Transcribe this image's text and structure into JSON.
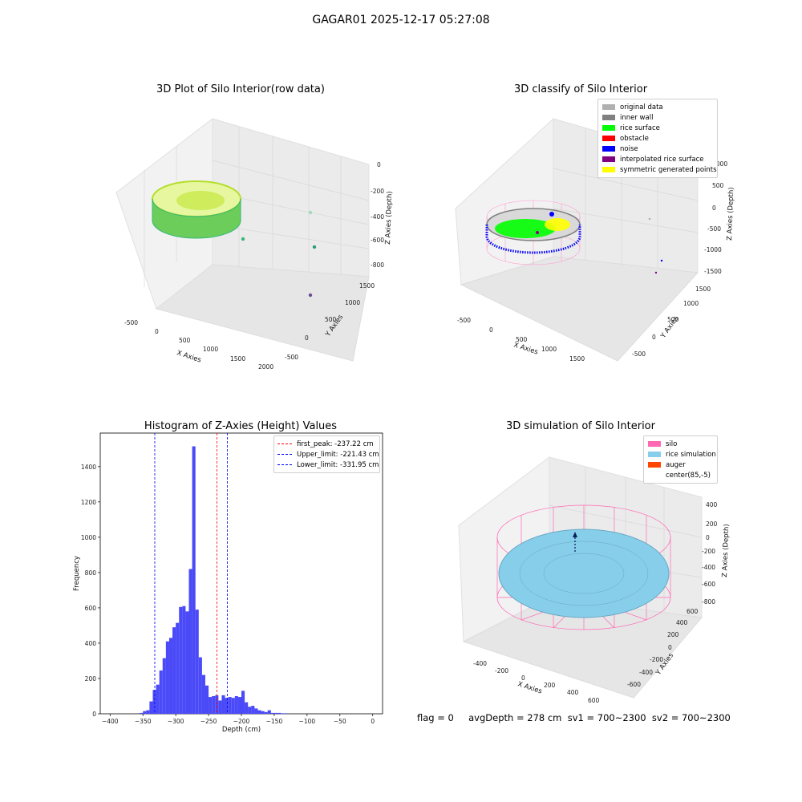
{
  "figure": {
    "title": "GAGAR01 2025-12-17 05:27:08"
  },
  "status_line": "flag = 0     avgDepth = 278 cm  sv1 = 700~2300  sv2 = 700~2300",
  "chart_data": [
    {
      "type": "scatter3d",
      "title": "3D Plot of Silo Interior(row data)",
      "xlabel": "X Axies",
      "ylabel": "Y Axies",
      "zlabel": "Z Axies (Depth)",
      "x_ticks": [
        "-500",
        "0",
        "500",
        "1000",
        "1500",
        "2000"
      ],
      "y_ticks": [
        "-500",
        "0",
        "500",
        "1000",
        "1500"
      ],
      "z_ticks": [
        "0",
        "-200",
        "-400",
        "-600",
        "-800"
      ],
      "colormap": "viridis",
      "series": [
        {
          "cluster": "silo ring of points",
          "color": "#8fd744"
        },
        {
          "outliers": 4
        }
      ]
    },
    {
      "type": "scatter3d",
      "title": "3D classify of Silo Interior",
      "xlabel": "X Axies",
      "ylabel": "Y Axies",
      "zlabel": "Z Axies (Depth)",
      "x_ticks": [
        "-500",
        "0",
        "500",
        "1000",
        "1500"
      ],
      "y_ticks": [
        "-500",
        "0",
        "500",
        "1000",
        "1500"
      ],
      "z_ticks": [
        "1000",
        "500",
        "0",
        "-500",
        "-1000",
        "-1500"
      ],
      "legend": [
        {
          "name": "original data",
          "color": "#b0b0b0"
        },
        {
          "name": "inner wall",
          "color": "#808080"
        },
        {
          "name": "rice surface",
          "color": "#00ff00"
        },
        {
          "name": "obstacle",
          "color": "#ff0000"
        },
        {
          "name": "noise",
          "color": "#0000ff"
        },
        {
          "name": "interpolated rice surface",
          "color": "#800080"
        },
        {
          "name": "symmetric generated points",
          "color": "#ffff00"
        }
      ]
    },
    {
      "type": "bar",
      "title": "Histogram of Z-Axies (Height) Values",
      "xlabel": "Depth (cm)",
      "ylabel": "Frequency",
      "xlim": [
        -415,
        15
      ],
      "ylim": [
        0,
        1590
      ],
      "x_ticks": [
        -400,
        -350,
        -300,
        -250,
        -200,
        -150,
        -100,
        -50,
        0
      ],
      "y_ticks": [
        0,
        200,
        400,
        600,
        800,
        1000,
        1200,
        1400
      ],
      "bar_color": "#4a4af8",
      "bins": [
        {
          "x0": -355,
          "x1": -350,
          "count": 5
        },
        {
          "x0": -350,
          "x1": -345,
          "count": 15
        },
        {
          "x0": -345,
          "x1": -340,
          "count": 20
        },
        {
          "x0": -340,
          "x1": -335,
          "count": 70
        },
        {
          "x0": -335,
          "x1": -330,
          "count": 135
        },
        {
          "x0": -330,
          "x1": -325,
          "count": 165
        },
        {
          "x0": -325,
          "x1": -320,
          "count": 245
        },
        {
          "x0": -320,
          "x1": -315,
          "count": 315
        },
        {
          "x0": -315,
          "x1": -310,
          "count": 410
        },
        {
          "x0": -310,
          "x1": -305,
          "count": 430
        },
        {
          "x0": -305,
          "x1": -300,
          "count": 490
        },
        {
          "x0": -300,
          "x1": -295,
          "count": 515
        },
        {
          "x0": -295,
          "x1": -290,
          "count": 605
        },
        {
          "x0": -290,
          "x1": -285,
          "count": 610
        },
        {
          "x0": -285,
          "x1": -280,
          "count": 580
        },
        {
          "x0": -280,
          "x1": -275,
          "count": 820
        },
        {
          "x0": -275,
          "x1": -270,
          "count": 1515
        },
        {
          "x0": -270,
          "x1": -265,
          "count": 590
        },
        {
          "x0": -265,
          "x1": -260,
          "count": 320
        },
        {
          "x0": -260,
          "x1": -255,
          "count": 220
        },
        {
          "x0": -255,
          "x1": -250,
          "count": 160
        },
        {
          "x0": -250,
          "x1": -245,
          "count": 95
        },
        {
          "x0": -245,
          "x1": -240,
          "count": 100
        },
        {
          "x0": -240,
          "x1": -235,
          "count": 105
        },
        {
          "x0": -235,
          "x1": -230,
          "count": 75
        },
        {
          "x0": -230,
          "x1": -225,
          "count": 105
        },
        {
          "x0": -225,
          "x1": -220,
          "count": 90
        },
        {
          "x0": -220,
          "x1": -215,
          "count": 95
        },
        {
          "x0": -215,
          "x1": -210,
          "count": 90
        },
        {
          "x0": -210,
          "x1": -205,
          "count": 100
        },
        {
          "x0": -205,
          "x1": -200,
          "count": 95
        },
        {
          "x0": -200,
          "x1": -195,
          "count": 130
        },
        {
          "x0": -195,
          "x1": -190,
          "count": 65
        },
        {
          "x0": -190,
          "x1": -185,
          "count": 40
        },
        {
          "x0": -185,
          "x1": -180,
          "count": 45
        },
        {
          "x0": -180,
          "x1": -175,
          "count": 30
        },
        {
          "x0": -175,
          "x1": -170,
          "count": 20
        },
        {
          "x0": -170,
          "x1": -165,
          "count": 15
        },
        {
          "x0": -165,
          "x1": -160,
          "count": 10
        },
        {
          "x0": -160,
          "x1": -155,
          "count": 20
        },
        {
          "x0": -155,
          "x1": -150,
          "count": 5
        },
        {
          "x0": -150,
          "x1": -145,
          "count": 5
        },
        {
          "x0": -145,
          "x1": -140,
          "count": 5
        },
        {
          "x0": -140,
          "x1": -135,
          "count": 3
        },
        {
          "x0": -135,
          "x1": -130,
          "count": 3
        }
      ],
      "vlines": [
        {
          "label": "first_peak: -237.22 cm",
          "x": -237.22,
          "color": "#ff0000"
        },
        {
          "label": "Upper_limit: -221.43 cm",
          "x": -221.43,
          "color": "#0000ff"
        },
        {
          "label": "Lower_limit: -331.95 cm",
          "x": -331.95,
          "color": "#0000ff"
        }
      ]
    },
    {
      "type": "surface3d",
      "title": "3D simulation of Silo Interior",
      "xlabel": "X Axies",
      "ylabel": "Y Axies",
      "zlabel": "Z Axies (Depth)",
      "x_ticks": [
        "-400",
        "-200",
        "0",
        "200",
        "400",
        "600"
      ],
      "y_ticks": [
        "-600",
        "-400",
        "-200",
        "0",
        "200",
        "400",
        "600"
      ],
      "z_ticks": [
        "400",
        "200",
        "0",
        "-200",
        "-400",
        "-600",
        "-800"
      ],
      "legend": [
        {
          "name": "silo",
          "color": "#ff69b4"
        },
        {
          "name": "rice simulation",
          "color": "#87ceeb"
        },
        {
          "name": "auger",
          "color": "#ff4500"
        },
        {
          "name": "center(85,-5)",
          "color": "#ffffff"
        }
      ]
    }
  ]
}
